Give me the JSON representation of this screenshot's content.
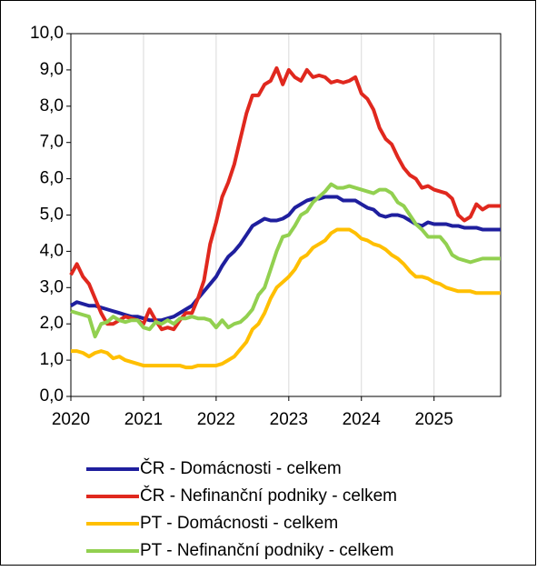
{
  "chart_data": {
    "type": "line",
    "x": [
      2020,
      2020.083,
      2020.167,
      2020.25,
      2020.333,
      2020.417,
      2020.5,
      2020.583,
      2020.667,
      2020.75,
      2020.833,
      2020.917,
      2021,
      2021.083,
      2021.167,
      2021.25,
      2021.333,
      2021.417,
      2021.5,
      2021.583,
      2021.667,
      2021.75,
      2021.833,
      2021.917,
      2022,
      2022.083,
      2022.167,
      2022.25,
      2022.333,
      2022.417,
      2022.5,
      2022.583,
      2022.667,
      2022.75,
      2022.833,
      2022.917,
      2023,
      2023.083,
      2023.167,
      2023.25,
      2023.333,
      2023.417,
      2023.5,
      2023.583,
      2023.667,
      2023.75,
      2023.833,
      2023.917,
      2024,
      2024.083,
      2024.167,
      2024.25,
      2024.333,
      2024.417,
      2024.5,
      2024.583,
      2024.667,
      2024.75,
      2024.833,
      2024.917,
      2025,
      2025.083,
      2025.167,
      2025.25,
      2025.333,
      2025.417,
      2025.5,
      2025.583,
      2025.667,
      2025.75,
      2025.833,
      2025.917
    ],
    "xlim": [
      2020,
      2025.917
    ],
    "xticks": [
      2020,
      2021,
      2022,
      2023,
      2024,
      2025
    ],
    "ylim": [
      0,
      10
    ],
    "yticks": [
      {
        "value": 0,
        "label": "0,0"
      },
      {
        "value": 1,
        "label": "1,0"
      },
      {
        "value": 2,
        "label": "2,0"
      },
      {
        "value": 3,
        "label": "3,0"
      },
      {
        "value": 4,
        "label": "4,0"
      },
      {
        "value": 5,
        "label": "5,0"
      },
      {
        "value": 6,
        "label": "6,0"
      },
      {
        "value": 7,
        "label": "7,0"
      },
      {
        "value": 8,
        "label": "8,0"
      },
      {
        "value": 9,
        "label": "9,0"
      },
      {
        "value": 10,
        "label": "10,0"
      }
    ],
    "grid": true,
    "series": [
      {
        "name": "ČR - Domácnosti - celkem",
        "color": "#1f1f9e",
        "values": [
          2.5,
          2.6,
          2.55,
          2.5,
          2.5,
          2.45,
          2.4,
          2.35,
          2.3,
          2.25,
          2.2,
          2.2,
          2.15,
          2.1,
          2.1,
          2.1,
          2.15,
          2.2,
          2.3,
          2.4,
          2.5,
          2.7,
          2.9,
          3.1,
          3.3,
          3.6,
          3.85,
          4.0,
          4.2,
          4.45,
          4.7,
          4.8,
          4.9,
          4.85,
          4.85,
          4.9,
          5.0,
          5.2,
          5.3,
          5.4,
          5.45,
          5.45,
          5.5,
          5.5,
          5.5,
          5.4,
          5.4,
          5.4,
          5.3,
          5.2,
          5.15,
          5.0,
          4.95,
          5.0,
          5.0,
          4.95,
          4.85,
          4.75,
          4.7,
          4.8,
          4.75,
          4.75,
          4.75,
          4.7,
          4.7,
          4.65,
          4.65,
          4.65,
          4.6,
          4.6,
          4.6,
          4.6
        ]
      },
      {
        "name": "ČR - Nefinanční podniky - celkem",
        "color": "#e0281e",
        "values": [
          3.35,
          3.65,
          3.3,
          3.1,
          2.7,
          2.3,
          2.0,
          2.0,
          2.1,
          2.2,
          2.15,
          2.1,
          2.0,
          2.4,
          2.1,
          1.85,
          1.9,
          1.85,
          2.1,
          2.3,
          2.3,
          2.7,
          3.2,
          4.2,
          4.8,
          5.5,
          5.9,
          6.4,
          7.1,
          7.8,
          8.3,
          8.3,
          8.6,
          8.7,
          9.05,
          8.6,
          9.0,
          8.8,
          8.7,
          9.0,
          8.8,
          8.85,
          8.8,
          8.65,
          8.7,
          8.65,
          8.7,
          8.8,
          8.35,
          8.2,
          7.9,
          7.4,
          7.1,
          6.95,
          6.6,
          6.3,
          6.1,
          6.0,
          5.75,
          5.8,
          5.7,
          5.65,
          5.6,
          5.45,
          5.0,
          4.85,
          4.95,
          5.3,
          5.15,
          5.25,
          5.25,
          5.25
        ]
      },
      {
        "name": "PT - Domácnosti - celkem",
        "color": "#ffbf00",
        "values": [
          1.25,
          1.25,
          1.2,
          1.1,
          1.2,
          1.25,
          1.2,
          1.05,
          1.1,
          1.0,
          0.95,
          0.9,
          0.85,
          0.85,
          0.85,
          0.85,
          0.85,
          0.85,
          0.85,
          0.8,
          0.8,
          0.85,
          0.85,
          0.85,
          0.85,
          0.9,
          1.0,
          1.1,
          1.3,
          1.5,
          1.85,
          2.0,
          2.3,
          2.7,
          3.0,
          3.15,
          3.3,
          3.5,
          3.8,
          3.9,
          4.1,
          4.2,
          4.3,
          4.5,
          4.6,
          4.6,
          4.6,
          4.5,
          4.35,
          4.3,
          4.2,
          4.15,
          4.05,
          3.9,
          3.8,
          3.65,
          3.45,
          3.3,
          3.3,
          3.25,
          3.15,
          3.1,
          3.0,
          2.95,
          2.9,
          2.9,
          2.9,
          2.85,
          2.85,
          2.85,
          2.85,
          2.85
        ]
      },
      {
        "name": "PT - Nefinanční podniky - celkem",
        "color": "#92d050",
        "values": [
          2.35,
          2.3,
          2.25,
          2.2,
          1.65,
          2.0,
          2.05,
          2.2,
          2.1,
          2.05,
          2.1,
          2.1,
          1.9,
          1.85,
          2.05,
          2.0,
          2.1,
          2.0,
          2.15,
          2.15,
          2.2,
          2.15,
          2.15,
          2.1,
          1.9,
          2.1,
          1.9,
          2.0,
          2.05,
          2.2,
          2.4,
          2.8,
          3.0,
          3.5,
          4.0,
          4.4,
          4.45,
          4.7,
          5.0,
          5.1,
          5.35,
          5.5,
          5.65,
          5.85,
          5.75,
          5.75,
          5.8,
          5.75,
          5.7,
          5.65,
          5.6,
          5.7,
          5.7,
          5.6,
          5.35,
          5.25,
          5.0,
          4.75,
          4.6,
          4.4,
          4.4,
          4.4,
          4.2,
          3.9,
          3.8,
          3.75,
          3.7,
          3.75,
          3.8,
          3.8,
          3.8,
          3.8
        ]
      }
    ]
  }
}
